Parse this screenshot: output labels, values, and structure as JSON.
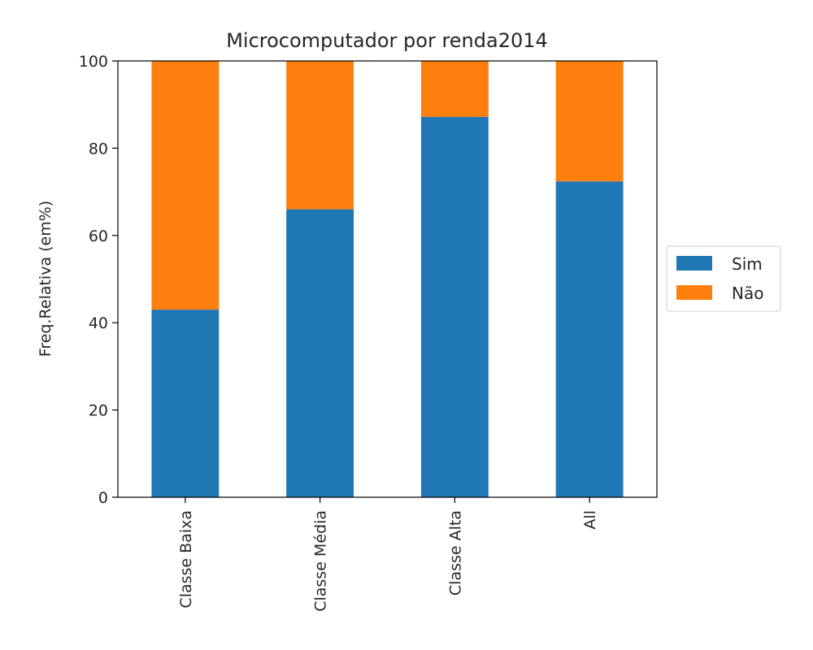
{
  "chart_data": {
    "type": "bar",
    "stacked": true,
    "title": "Microcomputador por renda2014",
    "ylabel": "Freq.Relativa (em%)",
    "xlabel": "",
    "categories": [
      "Classe Baixa",
      "Classe Média",
      "Classe Alta",
      "All"
    ],
    "series": [
      {
        "name": "Sim",
        "color": "#1f77b4",
        "values": [
          43.0,
          66.0,
          87.2,
          72.4
        ]
      },
      {
        "name": "Não",
        "color": "#ff7f0e",
        "values": [
          57.0,
          34.0,
          12.8,
          27.6
        ]
      }
    ],
    "ylim": [
      0,
      100
    ],
    "yticks": [
      0,
      20,
      40,
      60,
      80,
      100
    ],
    "grid": false,
    "legend_position": "right"
  }
}
